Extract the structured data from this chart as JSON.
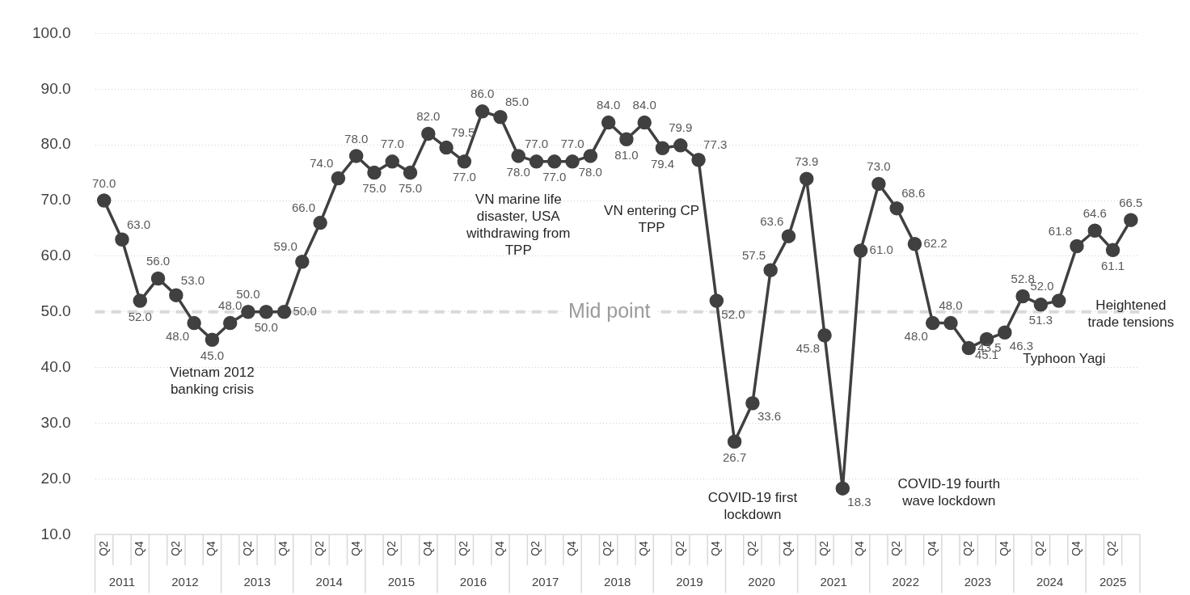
{
  "chart_data": {
    "type": "line",
    "categories": [
      "Q2",
      null,
      "Q4",
      null,
      "Q2",
      null,
      "Q4",
      null,
      "Q2",
      null,
      "Q4",
      null,
      "Q2",
      null,
      "Q4",
      null,
      "Q2",
      null,
      "Q4",
      null,
      "Q2",
      null,
      "Q4",
      null,
      "Q2",
      null,
      "Q4",
      null,
      "Q2",
      null,
      "Q4",
      null,
      "Q2",
      null,
      "Q4",
      null,
      "Q2",
      null,
      "Q4",
      null,
      "Q2",
      null,
      "Q4",
      null,
      "Q2",
      null,
      "Q4",
      null,
      "Q2",
      null,
      "Q4",
      null,
      "Q2",
      null,
      "Q4",
      null,
      "Q2",
      null
    ],
    "series": [
      {
        "color": "#404040",
        "values": [
          70.0,
          63.0,
          52.0,
          56.0,
          53.0,
          48.0,
          45.0,
          48.0,
          50.0,
          50.0,
          50.0,
          59.0,
          66.0,
          74.0,
          78.0,
          75.0,
          77.0,
          75.0,
          82.0,
          79.5,
          77.0,
          86.0,
          85.0,
          78.0,
          77.0,
          77.0,
          77.0,
          78.0,
          84.0,
          81.0,
          84.0,
          79.4,
          79.9,
          77.3,
          52.0,
          26.7,
          33.6,
          57.5,
          63.6,
          73.9,
          45.8,
          18.3,
          61.0,
          73.0,
          68.6,
          62.2,
          48.0,
          48.0,
          43.5,
          45.1,
          46.3,
          52.8,
          51.3,
          52.0,
          61.8,
          64.6,
          61.1,
          66.5
        ],
        "value_labels": [
          "70.0",
          "63.0",
          "52.0",
          "56.0",
          "53.0",
          "48.0",
          "45.0",
          "48.0",
          "50.0",
          "50.0",
          "50.0",
          "59.0",
          "66.0",
          "74.0",
          "78.0",
          "75.0",
          "77.0",
          "75.0",
          "82.0",
          "79.5",
          "77.0",
          "86.0",
          "85.0",
          "78.0",
          "77.0",
          "77.0",
          "77.0",
          "78.0",
          "84.0",
          "81.0",
          "84.0",
          "79.4",
          "79.9",
          "77.3",
          "52.0",
          "26.7",
          "33.6",
          "57.5",
          "63.6",
          "73.9",
          "45.8",
          "18.3",
          "61.0",
          "73.0",
          "68.6",
          "62.2",
          "48.0",
          "48.0",
          "43.5",
          "45.1",
          "46.3",
          "52.8",
          "51.3",
          "52.0",
          "61.8",
          "64.6",
          "61.1",
          "66.5"
        ]
      }
    ],
    "marker": "circle",
    "line_style": "solid",
    "grid": "y",
    "legend": false,
    "ylim": [
      10,
      100
    ],
    "yticks": [
      {
        "value": 10,
        "label": "10.0"
      },
      {
        "value": 20,
        "label": "20.0"
      },
      {
        "value": 30,
        "label": "30.0"
      },
      {
        "value": 40,
        "label": "40.0"
      },
      {
        "value": 50,
        "label": "50.0"
      },
      {
        "value": 60,
        "label": "60.0"
      },
      {
        "value": 70,
        "label": "70.0"
      },
      {
        "value": 80,
        "label": "80.0"
      },
      {
        "value": 90,
        "label": "90.0"
      },
      {
        "value": 100,
        "label": "100.0"
      }
    ],
    "ref_lines": [
      {
        "axis": "y",
        "value": 50,
        "label": "Mid point",
        "color": "#d9d9d9",
        "line_style": "dashed"
      }
    ],
    "annotations": [
      "2011",
      "2012",
      "2013",
      "2014",
      "2015",
      "2016",
      "2017",
      "2018",
      "2019",
      "2020",
      "2021",
      "2022",
      "2023",
      "2024",
      "2025",
      "Vietnam 2012 banking crisis",
      "VN marine life disaster, USA withdrawing from TPP",
      "VN entering CP TPP",
      "COVID-19 first lockdown",
      "COVID-19 fourth wave lockdown",
      "Typhoon Yagi",
      "Heightened trade tensions"
    ]
  }
}
